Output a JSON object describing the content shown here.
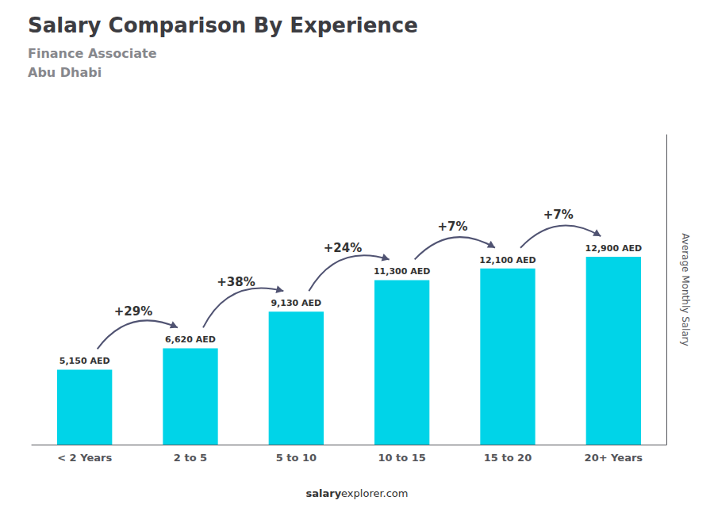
{
  "chart_data": {
    "type": "bar",
    "title": "Salary Comparison By Experience",
    "subtitle": [
      "Finance Associate",
      "Abu Dhabi"
    ],
    "categories": [
      "< 2 Years",
      "2 to 5",
      "5 to 10",
      "10 to 15",
      "15 to 20",
      "20+ Years"
    ],
    "values": [
      5150,
      6620,
      9130,
      11300,
      12100,
      12900
    ],
    "value_labels": [
      "5,150 AED",
      "6,620 AED",
      "9,130 AED",
      "11,300 AED",
      "12,100 AED",
      "12,900 AED"
    ],
    "data_labels": true,
    "color": "#00d4e8",
    "ylabel": "Average Monthly Salary",
    "ylim": [
      0,
      21285
    ],
    "tick_labels": "x",
    "grid": false,
    "annotations": [
      {
        "text": "+29%",
        "from": "< 2 Years",
        "to": "2 to 5"
      },
      {
        "text": "+38%",
        "from": "2 to 5",
        "to": "5 to 10"
      },
      {
        "text": "+24%",
        "from": "5 to 10",
        "to": "10 to 15"
      },
      {
        "text": "+7%",
        "from": "10 to 15",
        "to": "15 to 20"
      },
      {
        "text": "+7%",
        "from": "15 to 20",
        "to": "20+ Years"
      }
    ],
    "footer": [
      "salary",
      "explorer.com"
    ]
  }
}
